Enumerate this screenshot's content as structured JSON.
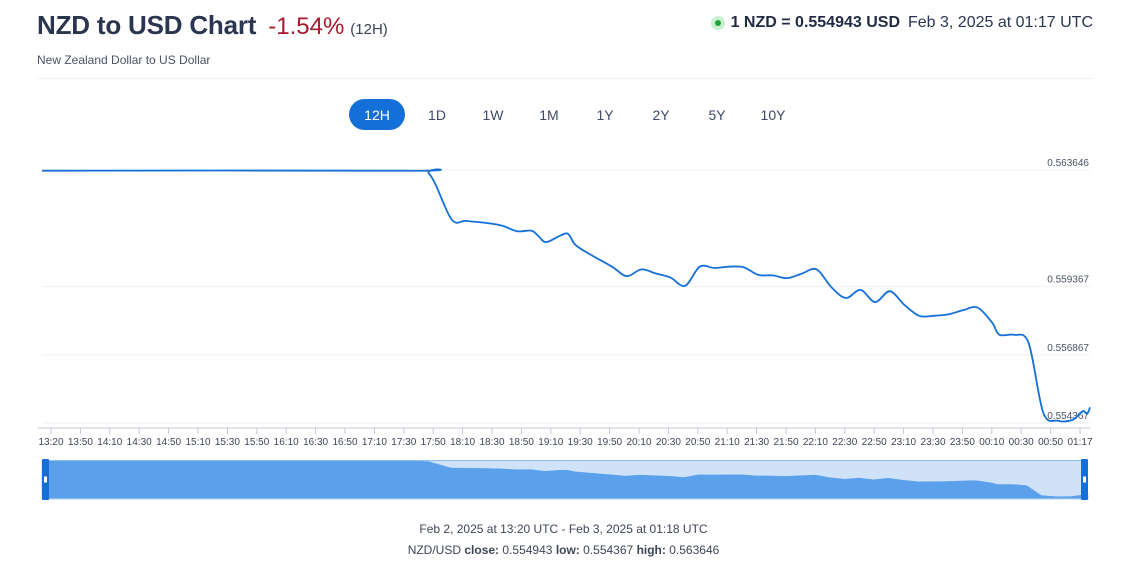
{
  "header": {
    "title": "NZD to USD Chart",
    "change": "-1.54%",
    "period": "(12H)",
    "subtitle": "New Zealand Dollar to US Dollar",
    "rate_text": "1 NZD = 0.554943 USD",
    "rate_time": "Feb 3, 2025 at 01:17 UTC",
    "change_color": "#a8192e",
    "live_color": "#1fa53a"
  },
  "ranges": [
    {
      "label": "12H",
      "active": true
    },
    {
      "label": "1D",
      "active": false
    },
    {
      "label": "1W",
      "active": false
    },
    {
      "label": "1M",
      "active": false
    },
    {
      "label": "1Y",
      "active": false
    },
    {
      "label": "2Y",
      "active": false
    },
    {
      "label": "5Y",
      "active": false
    },
    {
      "label": "10Y",
      "active": false
    }
  ],
  "chart_data": {
    "type": "line",
    "title": "",
    "xlabel": "",
    "ylabel": "",
    "line_color": "#1470d8",
    "y_ticks": [
      "0.563646",
      "0.559367",
      "0.556867",
      "0.554367"
    ],
    "ylim": [
      0.554367,
      0.563646
    ],
    "x_tick_labels": [
      "13:20",
      "13:50",
      "14:10",
      "14:30",
      "14:50",
      "15:10",
      "15:30",
      "15:50",
      "16:10",
      "16:30",
      "16:50",
      "17:10",
      "17:30",
      "17:50",
      "18:10",
      "18:30",
      "18:50",
      "19:10",
      "19:30",
      "19:50",
      "20:10",
      "20:30",
      "20:50",
      "21:10",
      "21:30",
      "21:50",
      "22:10",
      "22:30",
      "22:50",
      "23:10",
      "23:30",
      "23:50",
      "00:10",
      "00:30",
      "00:50",
      "01:17"
    ],
    "x": [
      "13:20",
      "17:30",
      "17:45",
      "18:00",
      "18:10",
      "18:25",
      "18:35",
      "18:45",
      "18:55",
      "19:00",
      "19:05",
      "19:15",
      "19:20",
      "19:25",
      "19:35",
      "19:50",
      "20:00",
      "20:10",
      "20:20",
      "20:30",
      "20:40",
      "20:50",
      "21:00",
      "21:10",
      "21:20",
      "21:30",
      "21:40",
      "21:50",
      "22:00",
      "22:10",
      "22:20",
      "22:30",
      "22:40",
      "22:50",
      "23:00",
      "23:10",
      "23:20",
      "23:30",
      "23:40",
      "23:50",
      "00:00",
      "00:10",
      "00:15",
      "00:25",
      "00:35",
      "00:45",
      "00:55",
      "01:05",
      "01:12",
      "01:15",
      "01:17"
    ],
    "y": [
      0.56362,
      0.56362,
      0.5635,
      0.56185,
      0.56178,
      0.5617,
      0.5616,
      0.5614,
      0.56142,
      0.5612,
      0.561,
      0.56125,
      0.5613,
      0.5609,
      0.56055,
      0.5601,
      0.55975,
      0.56,
      0.55985,
      0.5597,
      0.5594,
      0.5601,
      0.56005,
      0.5601,
      0.56008,
      0.5598,
      0.55978,
      0.55968,
      0.55985,
      0.56,
      0.55935,
      0.55895,
      0.55925,
      0.5588,
      0.5592,
      0.5587,
      0.5583,
      0.5583,
      0.55835,
      0.5585,
      0.5586,
      0.55805,
      0.5576,
      0.5576,
      0.5573,
      0.55475,
      0.55445,
      0.55448,
      0.5548,
      0.5547,
      0.55494
    ],
    "navigator_range": "Feb 2, 2025 at 13:20 UTC - Feb 3, 2025 at 01:18 UTC",
    "summary": {
      "pair": "NZD/USD",
      "close_label": "close:",
      "close": "0.554943",
      "low_label": "low:",
      "low": "0.554367",
      "high_label": "high:",
      "high": "0.563646"
    }
  }
}
